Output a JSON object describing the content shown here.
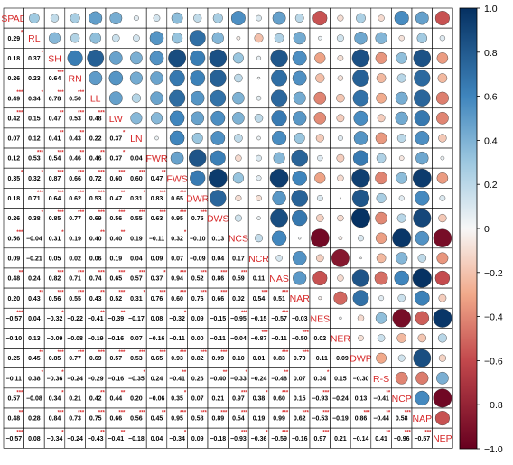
{
  "chart_data": {
    "type": "heatmap",
    "variables": [
      "SPAD",
      "RL",
      "SH",
      "RN",
      "LL",
      "LW",
      "LN",
      "FWR",
      "FWS",
      "DWR",
      "DWS",
      "NCS",
      "NCR",
      "NAS",
      "NAR",
      "NES",
      "NER",
      "DWP",
      "R-S",
      "NCP",
      "NAP",
      "NEP"
    ],
    "lower_coefficients": [
      [
        "0.29"
      ],
      [
        "0.18",
        "0.37"
      ],
      [
        "0.26",
        "0.23",
        "0.64"
      ],
      [
        "0.49",
        "0.34",
        "0.78",
        "0.50"
      ],
      [
        "0.42",
        "0.15",
        "0.47",
        "0.53",
        "0.48"
      ],
      [
        "0.07",
        "0.12",
        "0.41",
        "0.43",
        "0.22",
        "0.37"
      ],
      [
        "0.12",
        "0.53",
        "0.54",
        "0.46",
        "0.46",
        "0.37",
        "0.04"
      ],
      [
        "0.35",
        "0.32",
        "0.87",
        "0.66",
        "0.72",
        "0.60",
        "0.60",
        "0.47"
      ],
      [
        "0.18",
        "0.71",
        "0.64",
        "0.62",
        "0.53",
        "0.47",
        "0.31",
        "0.83",
        "0.65"
      ],
      [
        "0.26",
        "0.38",
        "0.85",
        "0.77",
        "0.69",
        "0.56",
        "0.55",
        "0.63",
        "0.95",
        "0.75"
      ],
      [
        "0.56",
        "−0.04",
        "0.31",
        "0.19",
        "0.40",
        "0.40",
        "0.19",
        "−0.11",
        "0.32",
        "−0.10",
        "0.13"
      ],
      [
        "0.09",
        "−0.21",
        "0.05",
        "0.02",
        "0.06",
        "0.19",
        "0.04",
        "0.09",
        "0.07",
        "−0.09",
        "0.04",
        "0.17"
      ],
      [
        "0.48",
        "0.24",
        "0.82",
        "0.71",
        "0.74",
        "0.65",
        "0.57",
        "0.37",
        "0.94",
        "0.52",
        "0.86",
        "0.59",
        "0.11"
      ],
      [
        "0.20",
        "0.43",
        "0.56",
        "0.55",
        "0.43",
        "0.52",
        "0.31",
        "0.76",
        "0.60",
        "0.76",
        "0.66",
        "0.02",
        "0.54",
        "0.51"
      ],
      [
        "−0.57",
        "0.04",
        "−0.32",
        "−0.22",
        "−0.41",
        "−0.39",
        "−0.17",
        "0.08",
        "−0.32",
        "0.09",
        "−0.15",
        "−0.95",
        "−0.15",
        "−0.57",
        "−0.03"
      ],
      [
        "−0.10",
        "0.13",
        "−0.09",
        "−0.08",
        "−0.19",
        "−0.16",
        "0.07",
        "−0.16",
        "−0.11",
        "0.00",
        "−0.11",
        "−0.04",
        "−0.87",
        "−0.11",
        "−0.50",
        "0.02"
      ],
      [
        "0.25",
        "0.45",
        "0.85",
        "0.77",
        "0.69",
        "0.57",
        "0.53",
        "0.65",
        "0.93",
        "0.82",
        "0.99",
        "0.10",
        "0.01",
        "0.83",
        "0.70",
        "−0.11",
        "−0.09"
      ],
      [
        "−0.11",
        "0.38",
        "−0.36",
        "−0.24",
        "−0.29",
        "−0.16",
        "−0.35",
        "0.24",
        "−0.41",
        "0.26",
        "−0.40",
        "−0.33",
        "−0.24",
        "−0.48",
        "0.07",
        "0.34",
        "0.15",
        "−0.30"
      ],
      [
        "0.57",
        "−0.08",
        "0.34",
        "0.21",
        "0.42",
        "0.44",
        "0.20",
        "−0.06",
        "0.35",
        "0.07",
        "0.21",
        "0.97",
        "0.38",
        "0.60",
        "0.15",
        "−0.93",
        "−0.24",
        "0.13",
        "−0.41"
      ],
      [
        "0.48",
        "0.28",
        "0.84",
        "0.73",
        "0.75",
        "0.66",
        "0.56",
        "0.45",
        "0.95",
        "0.58",
        "0.89",
        "0.54",
        "0.19",
        "0.99",
        "0.62",
        "−0.53",
        "−0.19",
        "0.86",
        "−0.44",
        "0.58"
      ],
      [
        "−0.57",
        "0.08",
        "−0.34",
        "−0.24",
        "−0.43",
        "−0.41",
        "−0.18",
        "0.04",
        "−0.34",
        "0.09",
        "−0.18",
        "−0.93",
        "−0.36",
        "−0.59",
        "−0.16",
        "0.97",
        "0.21",
        "−0.14",
        "0.41",
        "−0.96",
        "−0.57"
      ]
    ],
    "lower_significance": [
      [
        "*"
      ],
      [
        "",
        "*"
      ],
      [
        "",
        "",
        "***"
      ],
      [
        "***",
        "*",
        "***",
        "***"
      ],
      [
        "***",
        "",
        "**",
        "***",
        "***"
      ],
      [
        "",
        "",
        "**",
        "**",
        "",
        "*"
      ],
      [
        "",
        "***",
        "***",
        "**",
        "**",
        "*",
        ""
      ],
      [
        "*",
        "*",
        "***",
        "***",
        "***",
        "***",
        "***",
        "**"
      ],
      [
        "",
        "***",
        "***",
        "***",
        "***",
        "**",
        "*",
        "***",
        "***"
      ],
      [
        "",
        "*",
        "***",
        "***",
        "***",
        "***",
        "***",
        "***",
        "***",
        "***"
      ],
      [
        "***",
        "",
        "*",
        "",
        "**",
        "**",
        "",
        "",
        "*",
        "",
        ""
      ],
      [
        "",
        "",
        "",
        "",
        "",
        "",
        "",
        "",
        "",
        "",
        "",
        ""
      ],
      [
        "**",
        "",
        "***",
        "***",
        "***",
        "***",
        "***",
        "*",
        "***",
        "***",
        "***",
        "***",
        ""
      ],
      [
        "",
        "**",
        "***",
        "***",
        "**",
        "***",
        "*",
        "***",
        "***",
        "***",
        "***",
        "",
        "***",
        "***"
      ],
      [
        "***",
        "",
        "*",
        "",
        "**",
        "**",
        "",
        "",
        "*",
        "",
        "",
        "***",
        "",
        "***",
        ""
      ],
      [
        "",
        "",
        "",
        "",
        "",
        "",
        "",
        "",
        "",
        "",
        "",
        "",
        "***",
        "",
        "***",
        ""
      ],
      [
        "",
        "**",
        "***",
        "***",
        "***",
        "***",
        "***",
        "***",
        "***",
        "***",
        "***",
        "",
        "",
        "***",
        "***",
        "",
        ""
      ],
      [
        "",
        "*",
        "*",
        "",
        "",
        "",
        "*",
        "",
        "**",
        "",
        "**",
        "*",
        "",
        "**",
        "",
        "*",
        "",
        ""
      ],
      [
        "***",
        "",
        "*",
        "",
        "**",
        "**",
        "",
        "",
        "*",
        "",
        "",
        "***",
        "*",
        "***",
        "",
        "***",
        "",
        "",
        "**"
      ],
      [
        "**",
        "",
        "***",
        "***",
        "***",
        "***",
        "***",
        "**",
        "***",
        "***",
        "***",
        "***",
        "",
        "***",
        "***",
        "***",
        "",
        "***",
        "**",
        "***"
      ],
      [
        "***",
        "",
        "*",
        "",
        "**",
        "**",
        "",
        "",
        "*",
        "",
        "",
        "***",
        "*",
        "***",
        "",
        "***",
        "",
        "",
        "**",
        "***",
        "***"
      ]
    ],
    "color_scale": {
      "min": -1.0,
      "max": 1.0,
      "ticks": [
        "1.0",
        "0.8",
        "0.6",
        "0.4",
        "0.2",
        "0",
        "−0.2",
        "−0.4",
        "−0.6",
        "−0.8",
        "−1.0"
      ],
      "low_color": "#67001f",
      "mid_color": "#f7f7f7",
      "high_color": "#053061"
    },
    "upper_shape": "circle",
    "lower_display": "coefficient with significance stars",
    "diagonal_display": "variable name",
    "label_color": "#d62728"
  }
}
